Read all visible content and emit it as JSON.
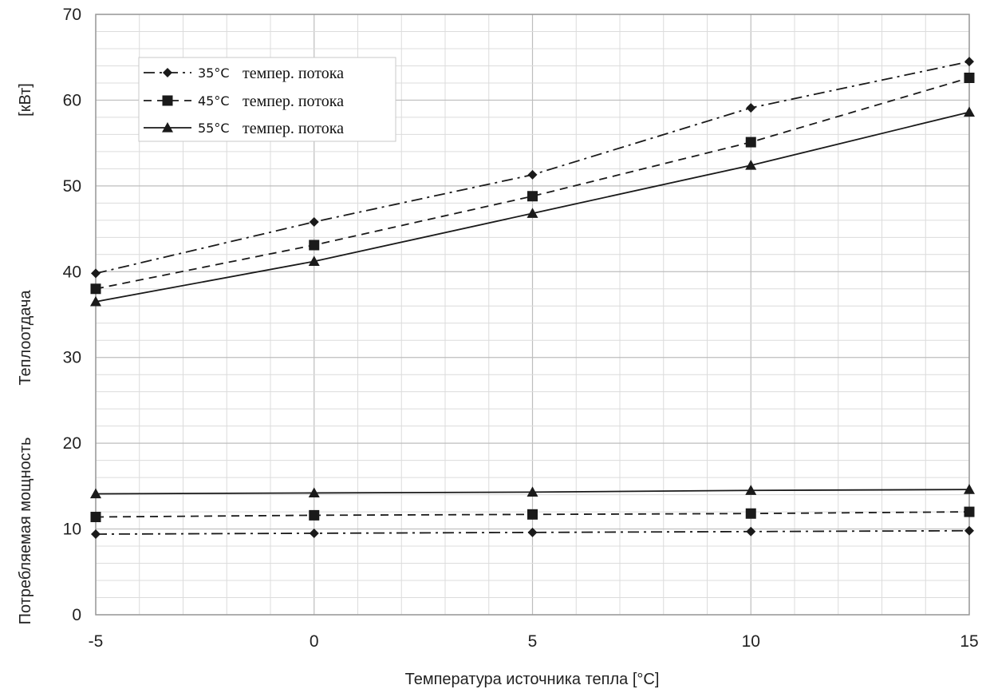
{
  "chart_data": {
    "type": "line",
    "title": "",
    "xlabel": "Температура источника тепла [°C]",
    "ylabel_parts": {
      "unit": "[кВт]",
      "heat_output": "Теплоотдача",
      "power_consumption": "Потребляемая мощность"
    },
    "xlim": [
      -5,
      15
    ],
    "ylim": [
      0,
      70
    ],
    "x_ticks": [
      "-5",
      "0",
      "5",
      "10",
      "15"
    ],
    "y_ticks": [
      "0",
      "10",
      "20",
      "30",
      "40",
      "50",
      "60",
      "70"
    ],
    "grid": true,
    "legend_position": "top-left",
    "x": [
      -5,
      0,
      5,
      10,
      15
    ],
    "series": [
      {
        "name": "35°C темпер. потока",
        "temp_label": "35°C",
        "desc_label": "темпер. потока",
        "marker": "diamond",
        "style": "dash-dot",
        "heat_output": [
          39.8,
          45.8,
          51.3,
          59.1,
          64.5
        ],
        "power_consumption": [
          9.4,
          9.5,
          9.6,
          9.7,
          9.8
        ]
      },
      {
        "name": "45°C темпер. потока",
        "temp_label": "45°C",
        "desc_label": "темпер. потока",
        "marker": "square",
        "style": "dashed",
        "heat_output": [
          38.0,
          43.1,
          48.8,
          55.1,
          62.6
        ],
        "power_consumption": [
          11.4,
          11.6,
          11.7,
          11.8,
          12.0
        ]
      },
      {
        "name": "55°C темпер. потока",
        "temp_label": "55°C",
        "desc_label": "темпер. потока",
        "marker": "triangle",
        "style": "solid",
        "heat_output": [
          36.5,
          41.2,
          46.8,
          52.4,
          58.6
        ],
        "power_consumption": [
          14.1,
          14.2,
          14.3,
          14.5,
          14.6
        ]
      }
    ],
    "colors": {
      "line": "#1a1a1a",
      "grid_minor": "#dcdcdc",
      "grid_major": "#bdbdbd",
      "frame": "#9a9a9a"
    }
  }
}
